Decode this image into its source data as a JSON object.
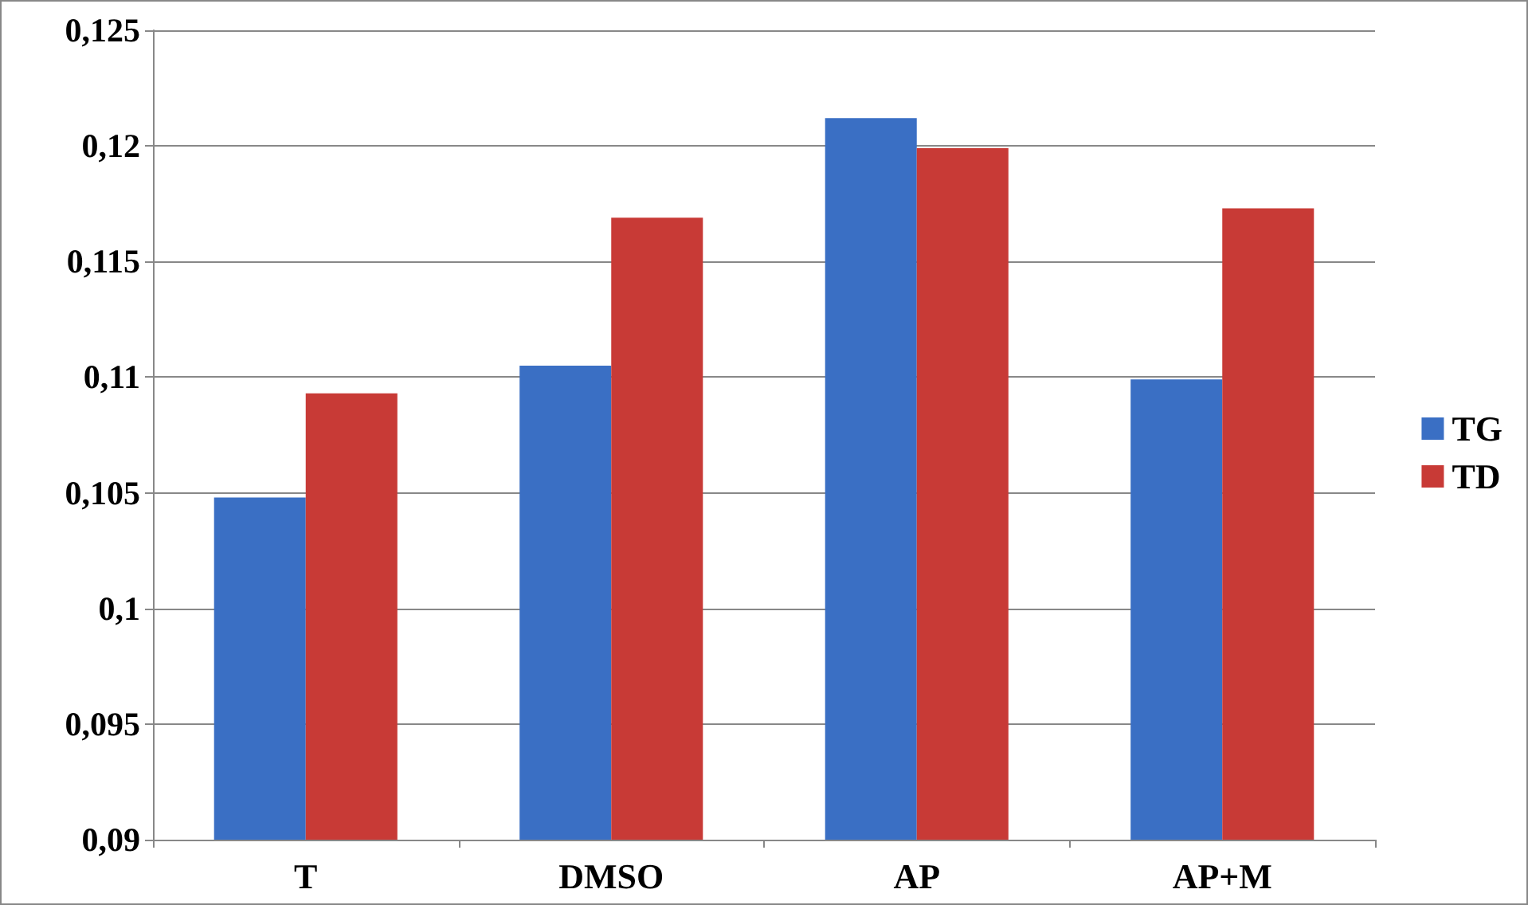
{
  "chart_data": {
    "type": "bar",
    "categories": [
      "T",
      "DMSO",
      "AP",
      "AP+M"
    ],
    "series": [
      {
        "name": "TG",
        "color": "#3a6fc4",
        "values": [
          0.1048,
          0.1105,
          0.1212,
          0.1099
        ]
      },
      {
        "name": "TD",
        "color": "#c83a36",
        "values": [
          0.1093,
          0.1169,
          0.1199,
          0.1173
        ]
      }
    ],
    "ylim": [
      0.09,
      0.125
    ],
    "yticks": [
      {
        "value": 0.09,
        "label": "0,09"
      },
      {
        "value": 0.095,
        "label": "0,095"
      },
      {
        "value": 0.1,
        "label": "0,1"
      },
      {
        "value": 0.105,
        "label": "0,105"
      },
      {
        "value": 0.11,
        "label": "0,11"
      },
      {
        "value": 0.115,
        "label": "0,115"
      },
      {
        "value": 0.12,
        "label": "0,12"
      },
      {
        "value": 0.125,
        "label": "0,125"
      }
    ],
    "grid": "y",
    "legend": "right"
  }
}
